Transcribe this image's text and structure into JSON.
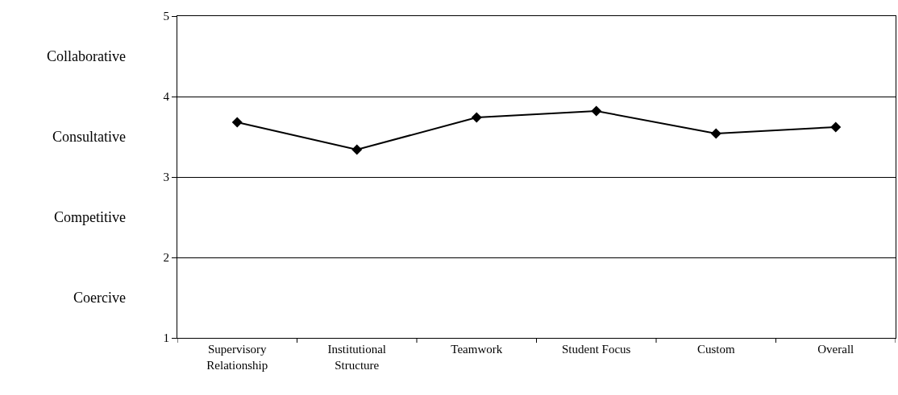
{
  "chart_data": {
    "type": "line",
    "categories": [
      "Supervisory Relationship",
      "Institutional Structure",
      "Teamwork",
      "Student Focus",
      "Custom",
      "Overall"
    ],
    "series": [
      {
        "color": "#000000",
        "values": [
          3.68,
          3.34,
          3.74,
          3.82,
          3.54,
          3.62
        ]
      }
    ],
    "ylim": [
      1,
      5
    ],
    "yticks": [
      1,
      2,
      3,
      4,
      5
    ],
    "annotations": [
      "Collaborative",
      "Consultative",
      "Competitive",
      "Coercive"
    ],
    "grid": "y",
    "legend": false,
    "marker": "diamond",
    "line_style": "solid"
  }
}
